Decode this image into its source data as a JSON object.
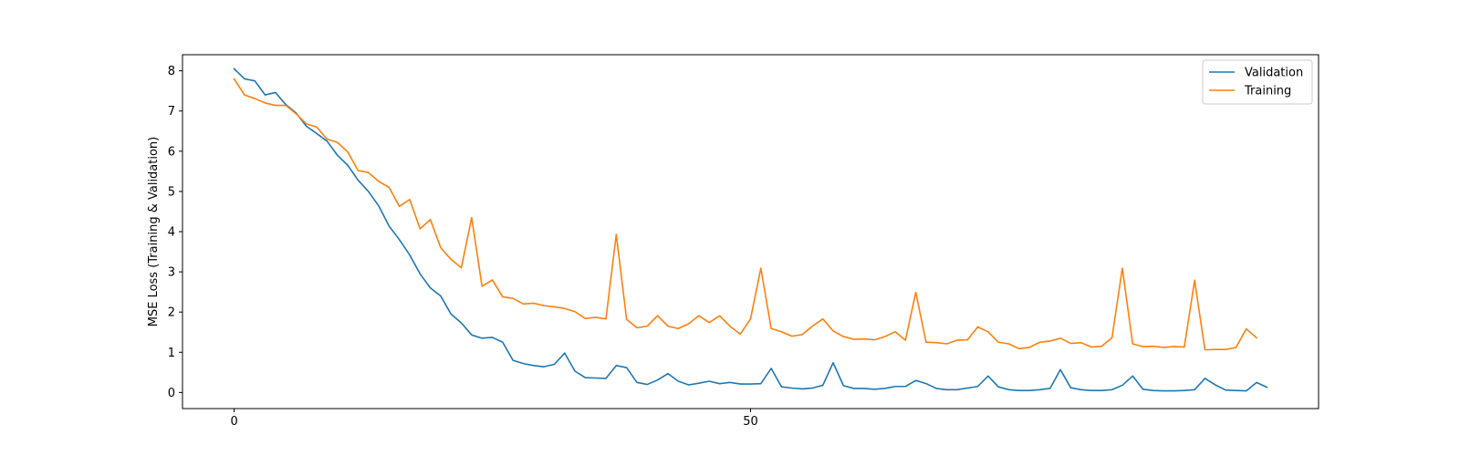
{
  "chart_data": {
    "type": "line",
    "ylabel": "MSE Loss (Training & Validation)",
    "xlabel": "",
    "title": "",
    "xlim": [
      -5,
      105
    ],
    "ylim": [
      -0.4,
      8.4
    ],
    "x_ticks": [
      0,
      50
    ],
    "y_ticks": [
      0,
      1,
      2,
      3,
      4,
      5,
      6,
      7,
      8
    ],
    "legend_position": "top-right",
    "series": [
      {
        "name": "Validation",
        "color": "#1f77b4",
        "values": [
          8.05,
          7.8,
          7.75,
          7.4,
          7.46,
          7.16,
          6.95,
          6.62,
          6.44,
          6.25,
          5.9,
          5.65,
          5.28,
          5.0,
          4.64,
          4.14,
          3.8,
          3.42,
          2.95,
          2.6,
          2.4,
          1.95,
          1.73,
          1.43,
          1.35,
          1.37,
          1.25,
          0.8,
          0.72,
          0.67,
          0.64,
          0.7,
          0.98,
          0.53,
          0.37,
          0.36,
          0.35,
          0.67,
          0.62,
          0.25,
          0.2,
          0.31,
          0.47,
          0.28,
          0.19,
          0.23,
          0.28,
          0.22,
          0.25,
          0.21,
          0.21,
          0.22,
          0.6,
          0.14,
          0.11,
          0.09,
          0.11,
          0.18,
          0.74,
          0.17,
          0.1,
          0.1,
          0.08,
          0.1,
          0.15,
          0.15,
          0.3,
          0.22,
          0.1,
          0.07,
          0.07,
          0.11,
          0.15,
          0.41,
          0.14,
          0.07,
          0.05,
          0.05,
          0.07,
          0.1,
          0.57,
          0.12,
          0.07,
          0.05,
          0.05,
          0.07,
          0.18,
          0.41,
          0.08,
          0.05,
          0.04,
          0.04,
          0.05,
          0.07,
          0.35,
          0.19,
          0.06,
          0.05,
          0.04,
          0.25,
          0.13
        ]
      },
      {
        "name": "Training",
        "color": "#ff7f0e",
        "values": [
          7.8,
          7.4,
          7.31,
          7.2,
          7.14,
          7.14,
          6.93,
          6.68,
          6.6,
          6.3,
          6.22,
          5.98,
          5.52,
          5.47,
          5.25,
          5.1,
          4.63,
          4.8,
          4.07,
          4.3,
          3.6,
          3.31,
          3.1,
          4.35,
          2.64,
          2.8,
          2.38,
          2.34,
          2.2,
          2.22,
          2.16,
          2.13,
          2.09,
          2.01,
          1.84,
          1.87,
          1.83,
          3.93,
          1.82,
          1.61,
          1.65,
          1.91,
          1.65,
          1.59,
          1.71,
          1.91,
          1.74,
          1.91,
          1.65,
          1.45,
          1.83,
          3.09,
          1.59,
          1.51,
          1.4,
          1.44,
          1.65,
          1.83,
          1.53,
          1.39,
          1.32,
          1.33,
          1.31,
          1.39,
          1.51,
          1.3,
          2.49,
          1.25,
          1.24,
          1.21,
          1.3,
          1.31,
          1.63,
          1.51,
          1.25,
          1.21,
          1.09,
          1.12,
          1.25,
          1.28,
          1.35,
          1.22,
          1.24,
          1.13,
          1.15,
          1.36,
          3.09,
          1.21,
          1.14,
          1.15,
          1.12,
          1.14,
          1.13,
          2.79,
          1.06,
          1.07,
          1.07,
          1.12,
          1.58,
          1.36
        ]
      }
    ]
  }
}
